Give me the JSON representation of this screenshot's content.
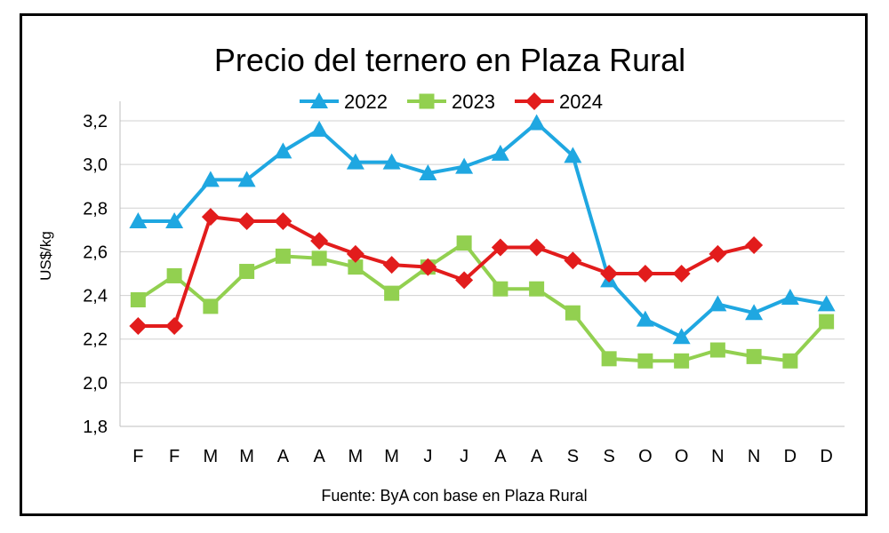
{
  "chart_data": {
    "type": "line",
    "title": "Precio del ternero en Plaza Rural",
    "ylabel": "US$/kg",
    "xlabel": "",
    "source": "Fuente: ByA con base en Plaza Rural",
    "categories": [
      "F",
      "F",
      "M",
      "M",
      "A",
      "A",
      "M",
      "M",
      "J",
      "J",
      "A",
      "A",
      "S",
      "S",
      "O",
      "O",
      "N",
      "N",
      "D",
      "D"
    ],
    "ylim": [
      1.8,
      3.2
    ],
    "yticks": [
      "1,8",
      "2,0",
      "2,2",
      "2,4",
      "2,6",
      "2,8",
      "3,0",
      "3,2"
    ],
    "grid": true,
    "legend_position": "top",
    "series": [
      {
        "name": "2022",
        "color": "#1fa7e1",
        "marker": "triangle",
        "values": [
          2.74,
          2.74,
          2.93,
          2.93,
          3.06,
          3.16,
          3.01,
          3.01,
          2.96,
          2.99,
          3.05,
          3.19,
          3.04,
          2.47,
          2.29,
          2.21,
          2.36,
          2.32,
          2.39,
          2.36
        ]
      },
      {
        "name": "2023",
        "color": "#92d050",
        "marker": "square",
        "values": [
          2.38,
          2.49,
          2.35,
          2.51,
          2.58,
          2.57,
          2.53,
          2.41,
          2.53,
          2.64,
          2.43,
          2.43,
          2.32,
          2.11,
          2.1,
          2.1,
          2.15,
          2.12,
          2.1,
          2.28
        ]
      },
      {
        "name": "2024",
        "color": "#e21c1c",
        "marker": "diamond",
        "values": [
          2.26,
          2.26,
          2.76,
          2.74,
          2.74,
          2.65,
          2.59,
          2.54,
          2.53,
          2.47,
          2.62,
          2.62,
          2.56,
          2.5,
          2.5,
          2.5,
          2.59,
          2.63,
          null,
          null
        ]
      }
    ]
  }
}
